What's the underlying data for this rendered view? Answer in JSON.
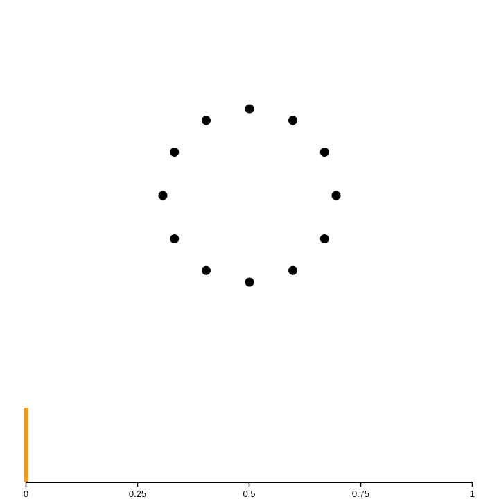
{
  "canvas": {
    "background": "#ffffff"
  },
  "dots": {
    "count": 12,
    "color": "#000000"
  },
  "progress": {
    "value": 0,
    "range": [
      0,
      1
    ],
    "bar_color": "#f39c12",
    "axis_color": "#000000",
    "ticks": [
      {
        "value": 0,
        "label": "0"
      },
      {
        "value": 0.25,
        "label": "0.25"
      },
      {
        "value": 0.5,
        "label": "0.5"
      },
      {
        "value": 0.75,
        "label": "0.75"
      },
      {
        "value": 1,
        "label": "1"
      }
    ]
  }
}
